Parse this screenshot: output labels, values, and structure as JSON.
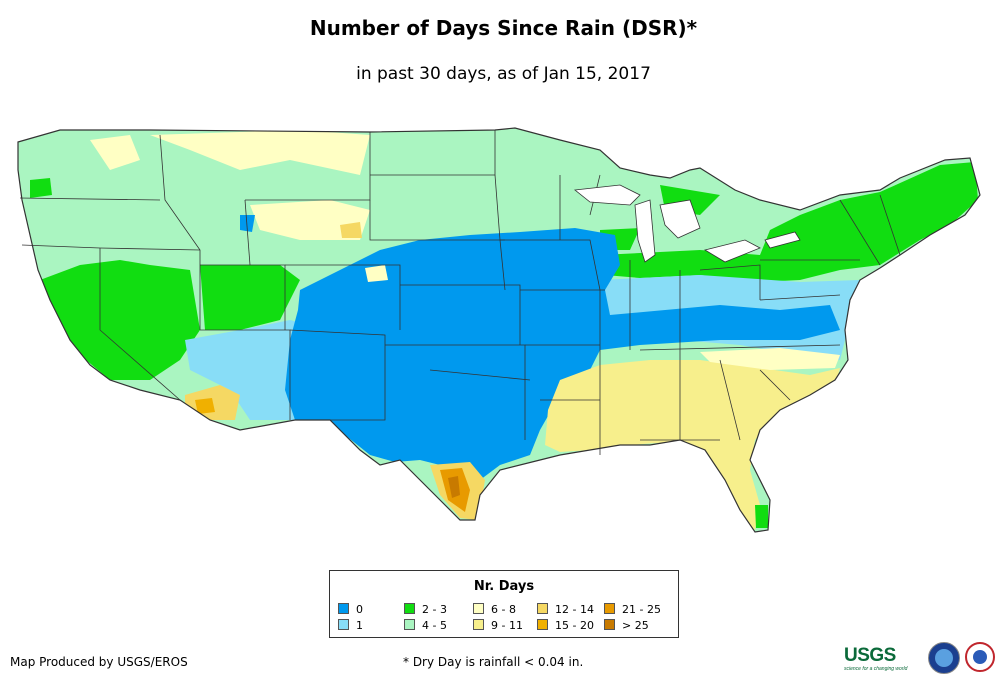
{
  "header": {
    "title": "Number of Days Since Rain (DSR)*",
    "subtitle": "in past 30 days, as of Jan 15, 2017"
  },
  "legend": {
    "title": "Nr. Days",
    "items": [
      {
        "label": "0",
        "color": "#0099ee"
      },
      {
        "label": "1",
        "color": "#88ddf7"
      },
      {
        "label": "2 - 3",
        "color": "#11dd11"
      },
      {
        "label": "4 - 5",
        "color": "#aaf5c1"
      },
      {
        "label": "6 - 8",
        "color": "#ffffc4"
      },
      {
        "label": "9 - 11",
        "color": "#f7ef8c"
      },
      {
        "label": "12 - 14",
        "color": "#f5d863"
      },
      {
        "label": "15 - 20",
        "color": "#f0b000"
      },
      {
        "label": "21 - 25",
        "color": "#e89a00"
      },
      {
        "label": "> 25",
        "color": "#c87a00"
      }
    ]
  },
  "footer": {
    "credit": "Map Produced by USGS/EROS",
    "footnote": "* Dry Day is rainfall < 0.04 in."
  },
  "logos": {
    "usgs": "USGS",
    "usgs_tagline": "science for a changing world",
    "noaa": "noaa-logo-icon",
    "nws": "nws-logo-icon"
  }
}
